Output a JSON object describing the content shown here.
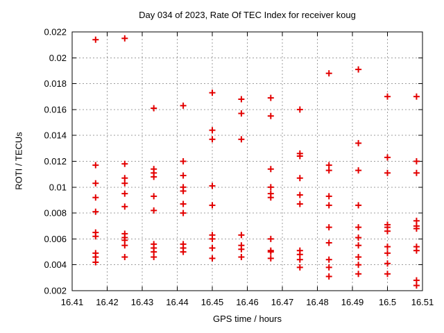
{
  "chart_data": {
    "type": "scatter",
    "title": "Day 034 of 2023, Rate Of TEC Index for receiver koug",
    "xlabel": "GPS time / hours",
    "ylabel": "ROTI / TECUs",
    "xlim": [
      16.41,
      16.51
    ],
    "ylim": [
      0.002,
      0.022
    ],
    "grid": true,
    "legend": "none",
    "marker": {
      "shape": "plus",
      "size": 9
    },
    "colors": {
      "marker": "#e30000",
      "grid": "#9c9c9c",
      "border": "#000000",
      "background": "#ffffff",
      "text": "#000000"
    },
    "x_ticks": [
      16.41,
      16.42,
      16.43,
      16.44,
      16.45,
      16.46,
      16.47,
      16.48,
      16.49,
      16.5,
      16.51
    ],
    "x_tick_labels": [
      "16.41",
      "16.42",
      "16.43",
      "16.44",
      "16.45",
      "16.46",
      "16.47",
      "16.48",
      "16.49",
      "16.5",
      "16.51"
    ],
    "y_ticks": [
      0.002,
      0.004,
      0.006,
      0.008,
      0.01,
      0.012,
      0.014,
      0.016,
      0.018,
      0.02,
      0.022
    ],
    "y_tick_labels": [
      "0.002",
      "0.004",
      "0.006",
      "0.008",
      "0.01",
      "0.012",
      "0.014",
      "0.016",
      "0.018",
      "0.02",
      "0.022"
    ],
    "points": [
      {
        "t": 16.4167,
        "values": [
          0.0214,
          0.0117,
          0.0103,
          0.0092,
          0.0081,
          0.0065,
          0.0062,
          0.0049,
          0.0046,
          0.0042
        ]
      },
      {
        "t": 16.425,
        "values": [
          0.0215,
          0.0118,
          0.0107,
          0.0103,
          0.0095,
          0.0085,
          0.0064,
          0.0061,
          0.0059,
          0.0055,
          0.0046
        ]
      },
      {
        "t": 16.4333,
        "values": [
          0.0161,
          0.0114,
          0.0111,
          0.0108,
          0.0093,
          0.0082,
          0.0056,
          0.0053,
          0.005,
          0.0046
        ]
      },
      {
        "t": 16.4417,
        "values": [
          0.0163,
          0.012,
          0.0109,
          0.01,
          0.0097,
          0.0087,
          0.008,
          0.0056,
          0.0053,
          0.005
        ]
      },
      {
        "t": 16.45,
        "values": [
          0.0173,
          0.0144,
          0.0137,
          0.0101,
          0.0086,
          0.0063,
          0.006,
          0.0053,
          0.0045
        ]
      },
      {
        "t": 16.4583,
        "values": [
          0.0168,
          0.0157,
          0.0137,
          0.0063,
          0.0055,
          0.0052,
          0.0046
        ]
      },
      {
        "t": 16.4667,
        "values": [
          0.0169,
          0.0155,
          0.0114,
          0.01,
          0.0095,
          0.0092,
          0.006,
          0.0051,
          0.005,
          0.0045
        ]
      },
      {
        "t": 16.475,
        "values": [
          0.016,
          0.0126,
          0.0124,
          0.0107,
          0.0094,
          0.0087,
          0.0051,
          0.0048,
          0.0044,
          0.0038
        ]
      },
      {
        "t": 16.4833,
        "values": [
          0.0188,
          0.0117,
          0.0113,
          0.0093,
          0.0086,
          0.0069,
          0.0057,
          0.0044,
          0.0038,
          0.0031
        ]
      },
      {
        "t": 16.4917,
        "values": [
          0.0191,
          0.0134,
          0.0113,
          0.0086,
          0.0069,
          0.0061,
          0.0055,
          0.0046,
          0.004,
          0.0033
        ]
      },
      {
        "t": 16.5,
        "values": [
          0.017,
          0.0123,
          0.0111,
          0.0071,
          0.0069,
          0.0066,
          0.0054,
          0.0049,
          0.0041,
          0.0033
        ]
      },
      {
        "t": 16.5083,
        "values": [
          0.017,
          0.012,
          0.0111,
          0.0074,
          0.007,
          0.0068,
          0.0054,
          0.0051,
          0.0028,
          0.0024
        ]
      }
    ]
  }
}
